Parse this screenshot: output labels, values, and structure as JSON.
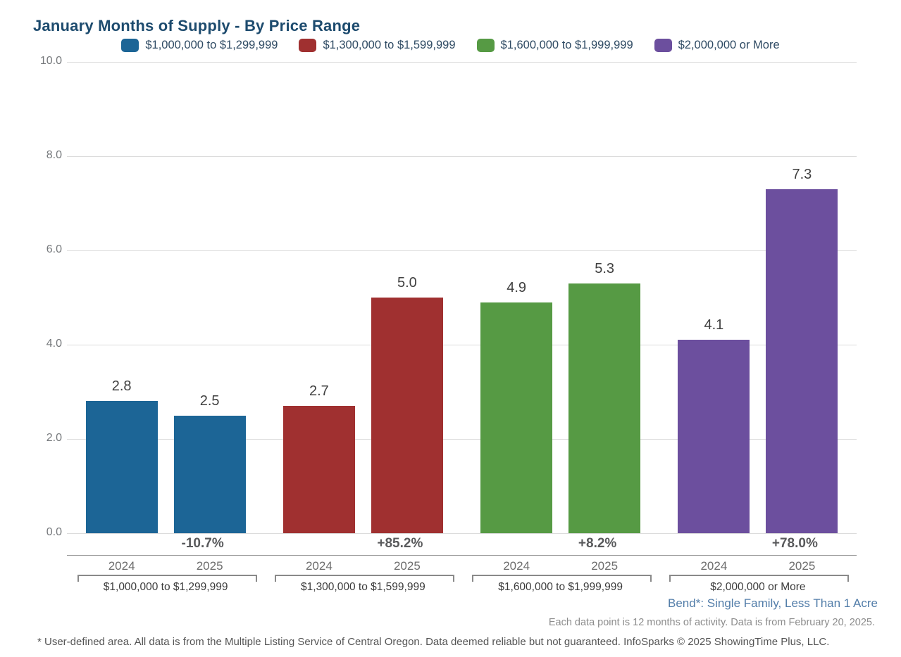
{
  "header": {
    "title": "January Months of Supply - By Price Range"
  },
  "chart_data": {
    "type": "bar",
    "title": "January Months of Supply - By Price Range",
    "xlabel": "",
    "ylabel": "",
    "ylim": [
      0,
      10
    ],
    "yticks": [
      0.0,
      2.0,
      4.0,
      6.0,
      8.0,
      10.0
    ],
    "grid": true,
    "legend_position": "top",
    "categories": [
      "2024",
      "2025"
    ],
    "groups": [
      {
        "label": "$1,000,000 to $1,299,999",
        "color": "#1c6596",
        "values": [
          2.8,
          2.5
        ],
        "change": "-10.7%"
      },
      {
        "label": "$1,300,000 to $1,599,999",
        "color": "#a03030",
        "values": [
          2.7,
          5.0
        ],
        "change": "+85.2%"
      },
      {
        "label": "$1,600,000 to $1,999,999",
        "color": "#569a44",
        "values": [
          4.9,
          5.3
        ],
        "change": "+8.2%"
      },
      {
        "label": "$2,000,000 or More",
        "color": "#6c4f9e",
        "values": [
          4.1,
          7.3
        ],
        "change": "+78.0%"
      }
    ]
  },
  "footnotes": {
    "area": "Bend*: Single Family, Less Than 1 Acre",
    "data_note": "Each data point is 12 months of activity. Data is from February 20, 2025.",
    "disclaimer": "* User-defined area. All data is from the Multiple Listing Service of Central Oregon. Data deemed reliable but not guaranteed. InfoSparks © 2025 ShowingTime Plus, LLC."
  },
  "colors": {
    "title": "#1d4b6e",
    "legend_text": "#2e4a63",
    "gridline": "#dcdcdc",
    "tick_text": "#75787b",
    "value_text": "#404040",
    "percent_text": "#58595b",
    "year_text": "#6d6d6d",
    "group_text": "#3b3b3b",
    "area_note_text": "#527da9",
    "series_blue": "#1c6596",
    "series_red": "#a03030",
    "series_green": "#569a44",
    "series_purple": "#6c4f9e"
  }
}
